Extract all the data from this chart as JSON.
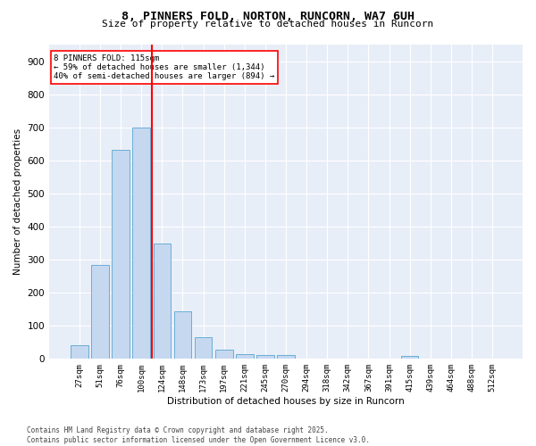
{
  "title": "8, PINNERS FOLD, NORTON, RUNCORN, WA7 6UH",
  "subtitle": "Size of property relative to detached houses in Runcorn",
  "xlabel": "Distribution of detached houses by size in Runcorn",
  "ylabel": "Number of detached properties",
  "bin_labels": [
    "27sqm",
    "51sqm",
    "76sqm",
    "100sqm",
    "124sqm",
    "148sqm",
    "173sqm",
    "197sqm",
    "221sqm",
    "245sqm",
    "270sqm",
    "294sqm",
    "318sqm",
    "342sqm",
    "367sqm",
    "391sqm",
    "415sqm",
    "439sqm",
    "464sqm",
    "488sqm",
    "512sqm"
  ],
  "bar_values": [
    40,
    285,
    633,
    700,
    350,
    143,
    65,
    28,
    14,
    11,
    11,
    0,
    0,
    0,
    0,
    0,
    8,
    0,
    0,
    0,
    0
  ],
  "bar_color": "#c5d8f0",
  "bar_edge_color": "#6aaed6",
  "background_color": "#e8eef8",
  "grid_color": "#ffffff",
  "red_line_x": 3.5,
  "annotation_line1": "8 PINNERS FOLD: 115sqm",
  "annotation_line2": "← 59% of detached houses are smaller (1,344)",
  "annotation_line3": "40% of semi-detached houses are larger (894) →",
  "footer_line1": "Contains HM Land Registry data © Crown copyright and database right 2025.",
  "footer_line2": "Contains public sector information licensed under the Open Government Licence v3.0.",
  "ylim": [
    0,
    950
  ],
  "yticks": [
    0,
    100,
    200,
    300,
    400,
    500,
    600,
    700,
    800,
    900
  ]
}
